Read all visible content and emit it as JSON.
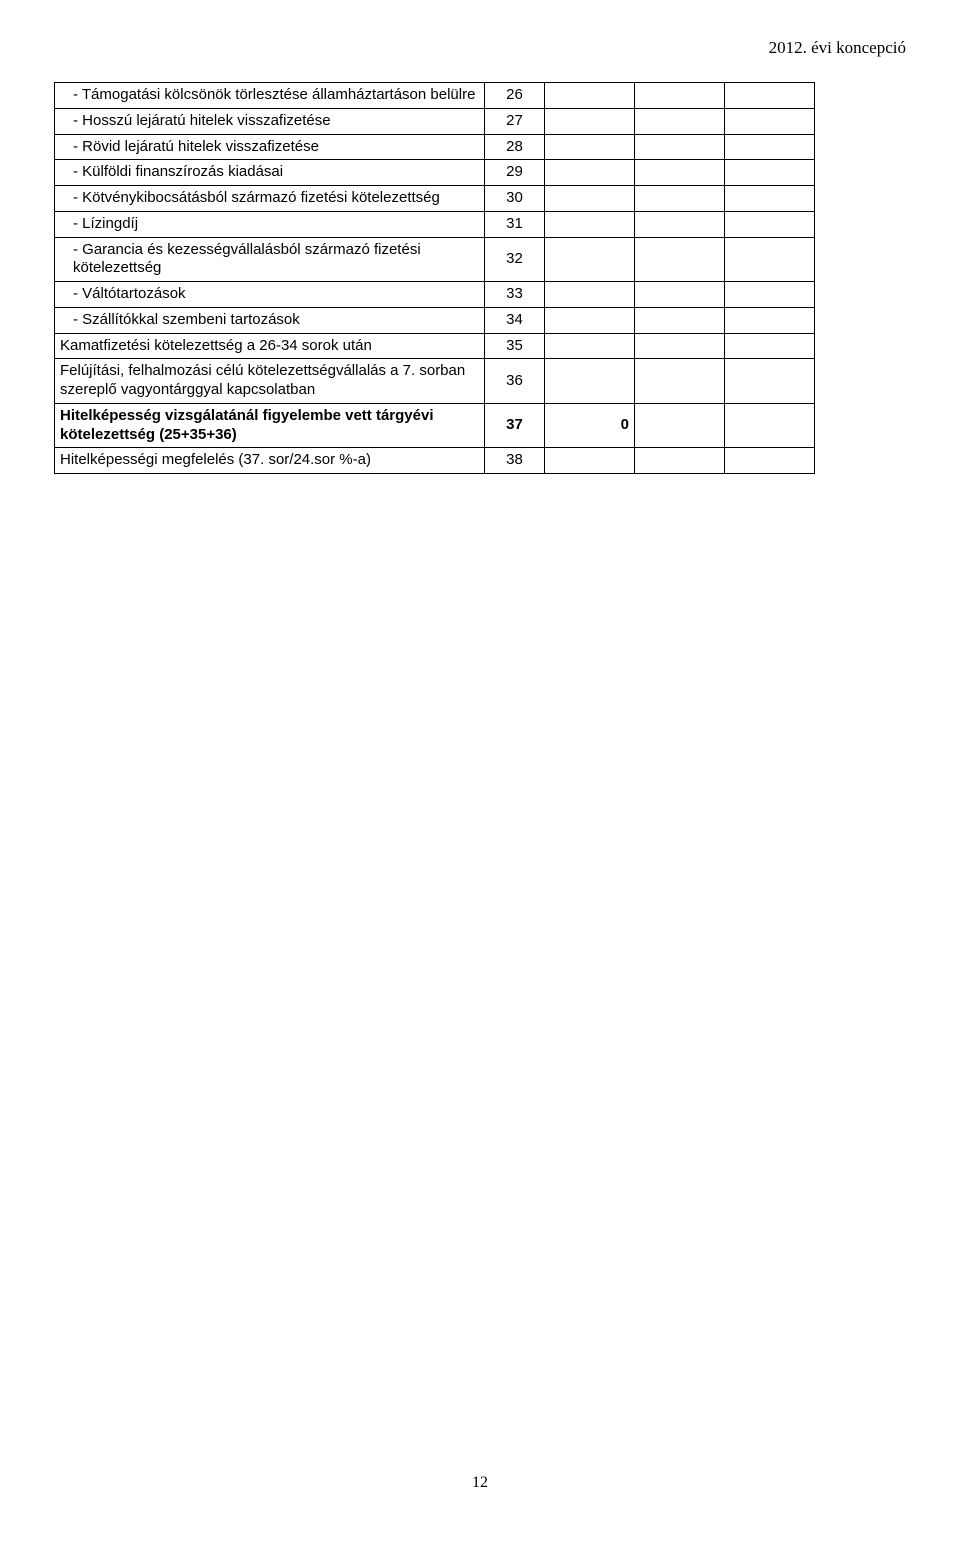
{
  "header": {
    "right_text": "2012. évi koncepció"
  },
  "table": {
    "rows": [
      {
        "label": "- Támogatási kölcsönök törlesztése államháztartáson belülre",
        "num": "26",
        "c": "",
        "d": "",
        "e": "",
        "indent": 1,
        "bold": false
      },
      {
        "label": "- Hosszú lejáratú hitelek visszafizetése",
        "num": "27",
        "c": "",
        "d": "",
        "e": "",
        "indent": 1,
        "bold": false
      },
      {
        "label": "- Rövid lejáratú hitelek visszafizetése",
        "num": "28",
        "c": "",
        "d": "",
        "e": "",
        "indent": 1,
        "bold": false
      },
      {
        "label": "- Külföldi finanszírozás kiadásai",
        "num": "29",
        "c": "",
        "d": "",
        "e": "",
        "indent": 1,
        "bold": false
      },
      {
        "label": "- Kötvénykibocsátásból származó fizetési kötelezettség",
        "num": "30",
        "c": "",
        "d": "",
        "e": "",
        "indent": 1,
        "bold": false
      },
      {
        "label": "- Lízingdíj",
        "num": "31",
        "c": "",
        "d": "",
        "e": "",
        "indent": 1,
        "bold": false
      },
      {
        "label": "- Garancia és kezességvállalásból származó fizetési kötelezettség",
        "num": "32",
        "c": "",
        "d": "",
        "e": "",
        "indent": 1,
        "bold": false
      },
      {
        "label": "- Váltótartozások",
        "num": "33",
        "c": "",
        "d": "",
        "e": "",
        "indent": 1,
        "bold": false
      },
      {
        "label": "- Szállítókkal szembeni tartozások",
        "num": "34",
        "c": "",
        "d": "",
        "e": "",
        "indent": 1,
        "bold": false
      },
      {
        "label": "Kamatfizetési kötelezettség a 26-34 sorok után",
        "num": "35",
        "c": "",
        "d": "",
        "e": "",
        "indent": 0,
        "bold": false
      },
      {
        "label": "Felújítási, felhalmozási célú kötelezettségvállalás a 7. sorban szereplő vagyontárggyal kapcsolatban",
        "num": "36",
        "c": "",
        "d": "",
        "e": "",
        "indent": 0,
        "bold": false
      },
      {
        "label": "Hitelképesség vizsgálatánál figyelembe vett tárgyévi kötelezettség (25+35+36)",
        "num": "37",
        "c": "0",
        "d": "",
        "e": "",
        "indent": 0,
        "bold": true
      },
      {
        "label": "Hitelképességi megfelelés (37. sor/24.sor %-a)",
        "num": "38",
        "c": "",
        "d": "",
        "e": "",
        "indent": 0,
        "bold": false
      }
    ]
  },
  "footer": {
    "page_number": "12"
  }
}
